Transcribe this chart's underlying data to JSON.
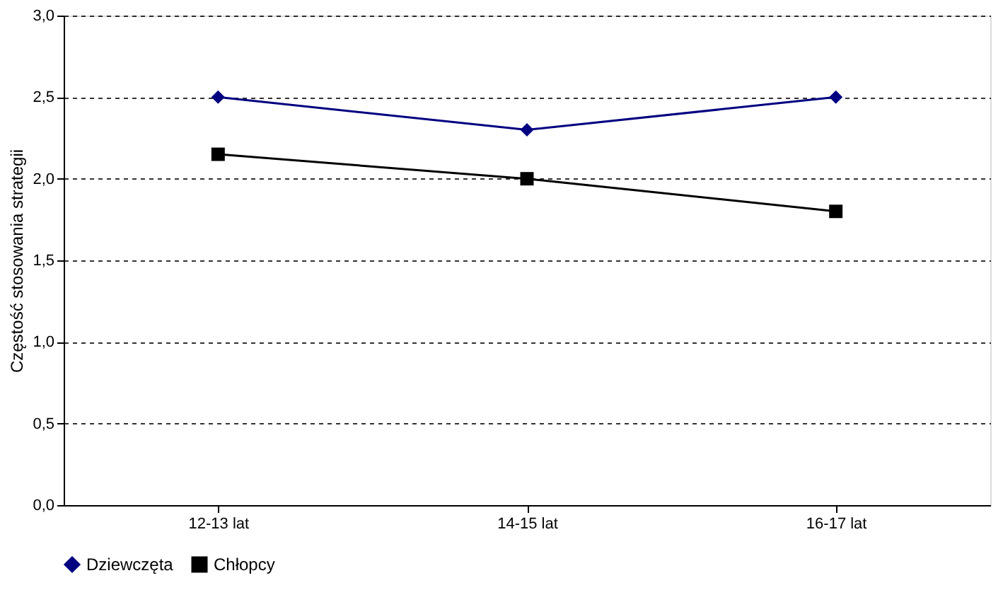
{
  "chart_data": {
    "type": "line",
    "ylabel": "Częstość stosowania strategii",
    "categories": [
      "12-13 lat",
      "14-15 lat",
      "16-17 lat"
    ],
    "series": [
      {
        "name": "Dziewczęta",
        "color": "#000080",
        "marker": "diamond",
        "values": [
          2.5,
          2.3,
          2.5
        ]
      },
      {
        "name": "Chłopcy",
        "color": "#000000",
        "marker": "square",
        "values": [
          2.15,
          2.0,
          1.8
        ]
      }
    ],
    "ylim": [
      0,
      3
    ],
    "yticks": [
      {
        "value": 0,
        "label": "0,0"
      },
      {
        "value": 0.5,
        "label": "0,5"
      },
      {
        "value": 1,
        "label": "1,0"
      },
      {
        "value": 1.5,
        "label": "1,5"
      },
      {
        "value": 2,
        "label": "2,0"
      },
      {
        "value": 2.5,
        "label": "2,5"
      },
      {
        "value": 3,
        "label": "3,0"
      }
    ],
    "grid": "y",
    "legend": "bottom",
    "line_style": "solid"
  }
}
